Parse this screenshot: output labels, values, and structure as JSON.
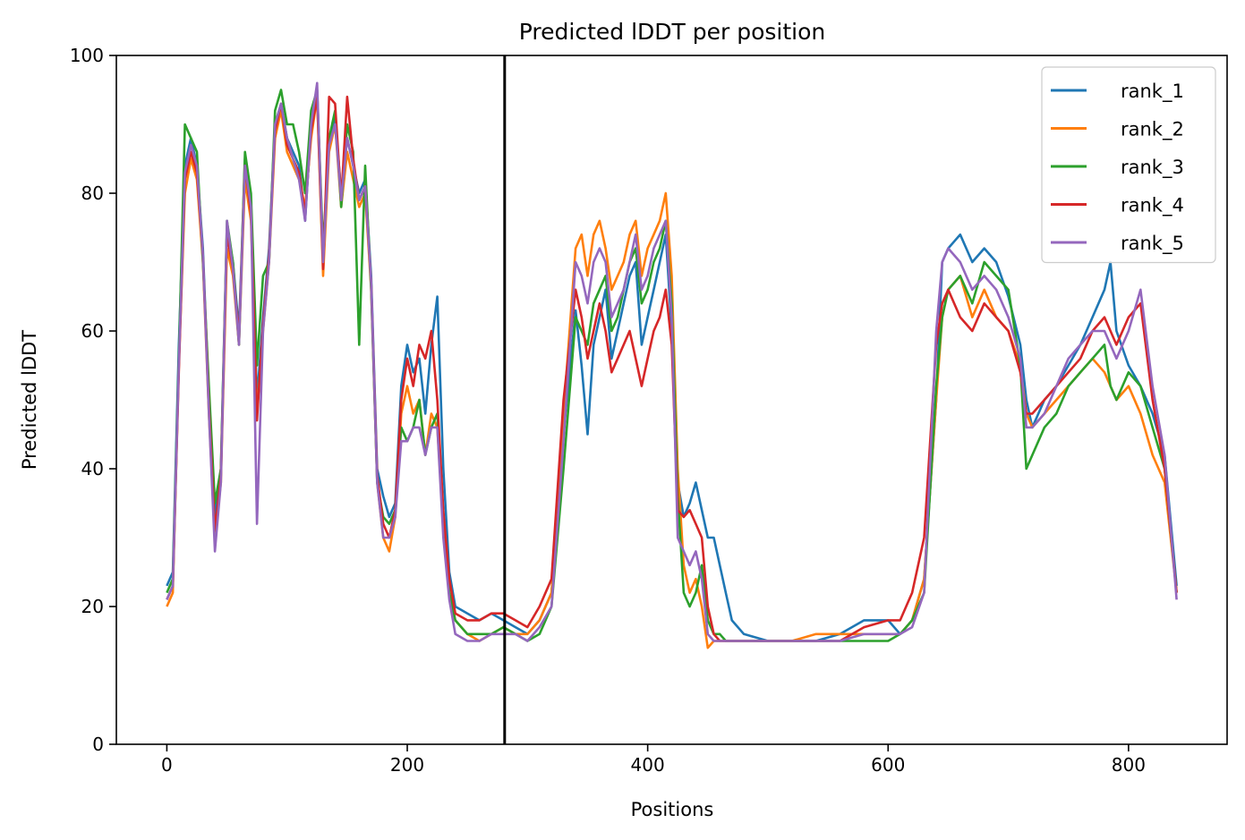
{
  "chart_data": {
    "type": "line",
    "title": "Predicted lDDT per position",
    "xlabel": "Positions",
    "ylabel": "Predicted lDDT",
    "xlim": [
      -42,
      882
    ],
    "ylim": [
      0,
      100
    ],
    "xticks": [
      0,
      200,
      400,
      600,
      800
    ],
    "yticks": [
      0,
      20,
      40,
      60,
      80,
      100
    ],
    "grid": false,
    "legend_position": "top-right",
    "vline_x": 281,
    "vline_color": "#000000",
    "series": [
      {
        "name": "rank_1",
        "color": "#1f77b4",
        "x": [
          0,
          5,
          10,
          15,
          20,
          25,
          30,
          35,
          40,
          45,
          50,
          55,
          60,
          65,
          70,
          75,
          80,
          85,
          90,
          95,
          100,
          105,
          110,
          115,
          120,
          125,
          130,
          135,
          140,
          145,
          150,
          155,
          160,
          165,
          170,
          175,
          180,
          185,
          190,
          195,
          200,
          205,
          210,
          215,
          220,
          225,
          230,
          235,
          240,
          250,
          260,
          270,
          280,
          290,
          300,
          310,
          320,
          330,
          340,
          345,
          350,
          355,
          360,
          365,
          370,
          375,
          380,
          385,
          390,
          395,
          400,
          405,
          410,
          415,
          420,
          425,
          430,
          435,
          440,
          445,
          450,
          455,
          460,
          465,
          470,
          480,
          500,
          520,
          540,
          560,
          580,
          600,
          610,
          620,
          630,
          640,
          645,
          650,
          660,
          670,
          680,
          690,
          700,
          710,
          715,
          720,
          730,
          740,
          750,
          760,
          770,
          780,
          785,
          790,
          800,
          810,
          820,
          830,
          840
        ],
        "values": [
          23,
          25,
          58,
          84,
          88,
          84,
          72,
          50,
          33,
          40,
          75,
          70,
          60,
          85,
          78,
          50,
          62,
          72,
          90,
          93,
          88,
          86,
          84,
          76,
          90,
          95,
          70,
          88,
          91,
          80,
          88,
          84,
          80,
          82,
          68,
          40,
          36,
          33,
          35,
          52,
          58,
          54,
          56,
          48,
          58,
          65,
          40,
          25,
          20,
          19,
          18,
          19,
          18,
          17,
          16,
          18,
          22,
          45,
          63,
          55,
          45,
          58,
          62,
          66,
          56,
          60,
          64,
          68,
          70,
          58,
          62,
          66,
          70,
          74,
          60,
          38,
          33,
          35,
          38,
          34,
          30,
          30,
          26,
          22,
          18,
          16,
          15,
          15,
          15,
          16,
          18,
          18,
          16,
          18,
          24,
          50,
          70,
          72,
          74,
          70,
          72,
          70,
          65,
          58,
          50,
          46,
          50,
          52,
          55,
          58,
          62,
          66,
          70,
          60,
          55,
          52,
          48,
          42,
          23
        ]
      },
      {
        "name": "rank_2",
        "color": "#ff7f0e",
        "x": [
          0,
          5,
          10,
          15,
          20,
          25,
          30,
          35,
          40,
          45,
          50,
          55,
          60,
          65,
          70,
          75,
          80,
          85,
          90,
          95,
          100,
          105,
          110,
          115,
          120,
          125,
          130,
          135,
          140,
          145,
          150,
          155,
          160,
          165,
          170,
          175,
          180,
          185,
          190,
          195,
          200,
          205,
          210,
          215,
          220,
          225,
          230,
          235,
          240,
          250,
          260,
          270,
          280,
          290,
          300,
          310,
          320,
          330,
          340,
          345,
          350,
          355,
          360,
          365,
          370,
          375,
          380,
          385,
          390,
          395,
          400,
          405,
          410,
          415,
          420,
          425,
          430,
          435,
          440,
          445,
          450,
          455,
          460,
          465,
          470,
          480,
          500,
          520,
          540,
          560,
          580,
          600,
          610,
          620,
          630,
          640,
          645,
          650,
          660,
          670,
          680,
          690,
          700,
          710,
          715,
          720,
          730,
          740,
          750,
          760,
          770,
          780,
          785,
          790,
          800,
          810,
          820,
          830,
          840
        ],
        "values": [
          20,
          22,
          55,
          80,
          85,
          82,
          70,
          48,
          30,
          38,
          72,
          68,
          58,
          82,
          76,
          48,
          60,
          70,
          88,
          92,
          86,
          84,
          82,
          78,
          88,
          94,
          68,
          86,
          90,
          78,
          86,
          82,
          78,
          80,
          66,
          38,
          30,
          28,
          33,
          48,
          52,
          48,
          50,
          42,
          48,
          46,
          32,
          22,
          18,
          16,
          15,
          16,
          17,
          16,
          16,
          18,
          22,
          48,
          72,
          74,
          68,
          74,
          76,
          72,
          66,
          68,
          70,
          74,
          76,
          68,
          72,
          74,
          76,
          80,
          68,
          40,
          26,
          22,
          24,
          20,
          14,
          15,
          15,
          15,
          15,
          15,
          15,
          15,
          16,
          16,
          16,
          16,
          16,
          18,
          24,
          50,
          62,
          66,
          68,
          62,
          66,
          62,
          60,
          55,
          48,
          46,
          48,
          50,
          52,
          54,
          56,
          54,
          52,
          50,
          52,
          48,
          42,
          38,
          22
        ]
      },
      {
        "name": "rank_3",
        "color": "#2ca02c",
        "x": [
          0,
          5,
          10,
          15,
          20,
          25,
          30,
          35,
          40,
          45,
          50,
          55,
          60,
          65,
          70,
          75,
          80,
          85,
          90,
          95,
          100,
          105,
          110,
          115,
          120,
          125,
          130,
          135,
          140,
          145,
          150,
          155,
          160,
          165,
          170,
          175,
          180,
          185,
          190,
          195,
          200,
          205,
          210,
          215,
          220,
          225,
          230,
          235,
          240,
          250,
          260,
          270,
          280,
          290,
          300,
          310,
          320,
          330,
          340,
          345,
          350,
          355,
          360,
          365,
          370,
          375,
          380,
          385,
          390,
          395,
          400,
          405,
          410,
          415,
          420,
          425,
          430,
          435,
          440,
          445,
          450,
          455,
          460,
          465,
          470,
          480,
          500,
          520,
          540,
          560,
          580,
          600,
          610,
          620,
          630,
          640,
          645,
          650,
          660,
          670,
          680,
          690,
          700,
          710,
          715,
          720,
          730,
          740,
          750,
          760,
          770,
          780,
          785,
          790,
          800,
          810,
          820,
          830,
          840
        ],
        "values": [
          22,
          24,
          56,
          90,
          88,
          86,
          70,
          52,
          35,
          40,
          76,
          70,
          58,
          86,
          80,
          55,
          68,
          70,
          92,
          95,
          90,
          90,
          86,
          80,
          92,
          95,
          72,
          88,
          92,
          78,
          90,
          86,
          58,
          84,
          66,
          38,
          33,
          32,
          34,
          46,
          44,
          46,
          50,
          42,
          46,
          48,
          32,
          22,
          18,
          16,
          16,
          16,
          17,
          16,
          15,
          16,
          20,
          40,
          62,
          60,
          58,
          64,
          66,
          68,
          60,
          62,
          66,
          70,
          72,
          64,
          66,
          70,
          72,
          76,
          64,
          36,
          22,
          20,
          22,
          26,
          18,
          16,
          16,
          15,
          15,
          15,
          15,
          15,
          15,
          15,
          15,
          15,
          16,
          18,
          22,
          52,
          62,
          66,
          68,
          64,
          70,
          68,
          66,
          55,
          40,
          42,
          46,
          48,
          52,
          54,
          56,
          58,
          52,
          50,
          54,
          52,
          46,
          40,
          22
        ]
      },
      {
        "name": "rank_4",
        "color": "#d62728",
        "x": [
          0,
          5,
          10,
          15,
          20,
          25,
          30,
          35,
          40,
          45,
          50,
          55,
          60,
          65,
          70,
          75,
          80,
          85,
          90,
          95,
          100,
          105,
          110,
          115,
          120,
          125,
          130,
          135,
          140,
          145,
          150,
          155,
          160,
          165,
          170,
          175,
          180,
          185,
          190,
          195,
          200,
          205,
          210,
          215,
          220,
          225,
          230,
          235,
          240,
          250,
          260,
          270,
          280,
          290,
          300,
          310,
          320,
          330,
          340,
          345,
          350,
          355,
          360,
          365,
          370,
          375,
          380,
          385,
          390,
          395,
          400,
          405,
          410,
          415,
          420,
          425,
          430,
          435,
          440,
          445,
          450,
          455,
          460,
          465,
          470,
          480,
          500,
          520,
          540,
          560,
          580,
          600,
          610,
          620,
          630,
          640,
          645,
          650,
          660,
          670,
          680,
          690,
          700,
          710,
          715,
          720,
          730,
          740,
          750,
          760,
          770,
          780,
          785,
          790,
          800,
          810,
          820,
          830,
          840
        ],
        "values": [
          21,
          23,
          54,
          82,
          86,
          83,
          71,
          49,
          31,
          39,
          74,
          69,
          59,
          84,
          77,
          47,
          61,
          71,
          89,
          93,
          87,
          85,
          83,
          77,
          89,
          94,
          69,
          94,
          93,
          79,
          94,
          85,
          79,
          81,
          67,
          39,
          32,
          30,
          34,
          50,
          56,
          52,
          58,
          56,
          60,
          50,
          34,
          24,
          19,
          18,
          18,
          19,
          19,
          18,
          17,
          20,
          24,
          50,
          66,
          62,
          56,
          60,
          64,
          60,
          54,
          56,
          58,
          60,
          56,
          52,
          56,
          60,
          62,
          66,
          58,
          34,
          33,
          34,
          32,
          30,
          20,
          16,
          15,
          15,
          15,
          15,
          15,
          15,
          15,
          15,
          17,
          18,
          18,
          22,
          30,
          58,
          64,
          66,
          62,
          60,
          64,
          62,
          60,
          54,
          48,
          48,
          50,
          52,
          54,
          56,
          60,
          62,
          60,
          58,
          62,
          64,
          50,
          40,
          22
        ]
      },
      {
        "name": "rank_5",
        "color": "#9467bd",
        "x": [
          0,
          5,
          10,
          15,
          20,
          25,
          30,
          35,
          40,
          45,
          50,
          55,
          60,
          65,
          70,
          75,
          80,
          85,
          90,
          95,
          100,
          105,
          110,
          115,
          120,
          125,
          130,
          135,
          140,
          145,
          150,
          155,
          160,
          165,
          170,
          175,
          180,
          185,
          190,
          195,
          200,
          205,
          210,
          215,
          220,
          225,
          230,
          235,
          240,
          250,
          260,
          270,
          280,
          290,
          300,
          310,
          320,
          330,
          340,
          345,
          350,
          355,
          360,
          365,
          370,
          375,
          380,
          385,
          390,
          395,
          400,
          405,
          410,
          415,
          420,
          425,
          430,
          435,
          440,
          445,
          450,
          455,
          460,
          465,
          470,
          480,
          500,
          520,
          540,
          560,
          580,
          600,
          610,
          620,
          630,
          640,
          645,
          650,
          660,
          670,
          680,
          690,
          700,
          710,
          715,
          720,
          730,
          740,
          750,
          760,
          770,
          780,
          785,
          790,
          800,
          810,
          820,
          830,
          840
        ],
        "values": [
          21,
          23,
          55,
          83,
          87,
          84,
          71,
          48,
          28,
          38,
          76,
          69,
          58,
          84,
          78,
          32,
          60,
          70,
          90,
          93,
          88,
          85,
          82,
          76,
          90,
          96,
          70,
          87,
          90,
          79,
          88,
          84,
          79,
          81,
          67,
          38,
          30,
          30,
          33,
          44,
          44,
          46,
          46,
          42,
          46,
          46,
          30,
          21,
          16,
          15,
          15,
          16,
          16,
          16,
          15,
          17,
          20,
          44,
          70,
          68,
          64,
          70,
          72,
          70,
          62,
          64,
          66,
          70,
          74,
          66,
          68,
          72,
          74,
          76,
          62,
          30,
          28,
          26,
          28,
          24,
          16,
          15,
          15,
          15,
          15,
          15,
          15,
          15,
          15,
          15,
          16,
          16,
          16,
          17,
          22,
          60,
          70,
          72,
          70,
          66,
          68,
          66,
          62,
          56,
          46,
          46,
          48,
          52,
          56,
          58,
          60,
          60,
          58,
          56,
          60,
          66,
          52,
          42,
          21
        ]
      }
    ]
  }
}
